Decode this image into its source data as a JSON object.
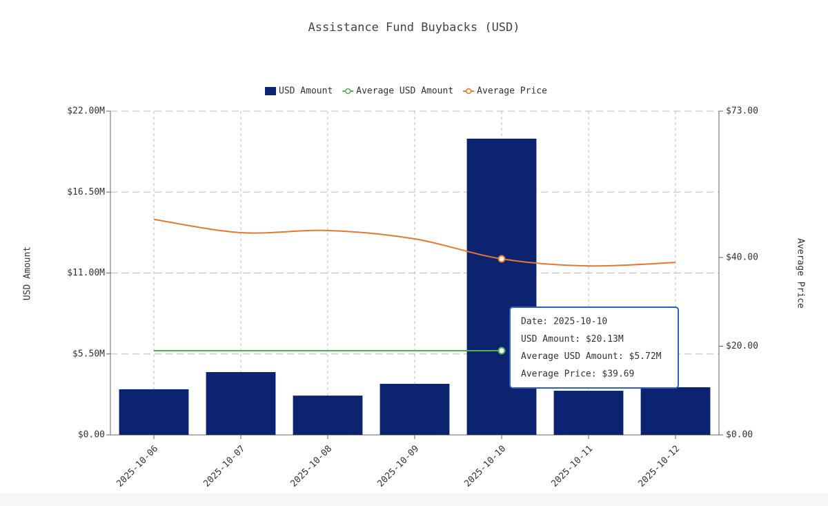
{
  "chart_data": {
    "type": "bar",
    "title": "Assistance Fund Buybacks (USD)",
    "categories": [
      "2025-10-06",
      "2025-10-07",
      "2025-10-08",
      "2025-10-09",
      "2025-10-10",
      "2025-10-11",
      "2025-10-12"
    ],
    "series": [
      {
        "name": "USD Amount",
        "type": "bar",
        "color": "#0c2470",
        "values": [
          3100000,
          4270000,
          2670000,
          3470000,
          20130000,
          3000000,
          3240000
        ]
      },
      {
        "name": "Average USD Amount",
        "type": "line",
        "color": "#4caf50",
        "values": [
          5720000,
          5720000,
          5720000,
          5720000,
          5720000,
          null,
          null
        ]
      },
      {
        "name": "Average Price",
        "type": "line",
        "axis": "y2",
        "color": "#e8772e",
        "values": [
          48.6,
          45.6,
          46.1,
          44.2,
          39.69,
          38.1,
          38.9
        ]
      }
    ],
    "y_label": "USD Amount",
    "y2_label": "Average Price",
    "ylim": [
      0,
      22000000
    ],
    "yticks": [
      {
        "value": 0,
        "label": "$0.00"
      },
      {
        "value": 5500000,
        "label": "$5.50M"
      },
      {
        "value": 11000000,
        "label": "$11.00M"
      },
      {
        "value": 16500000,
        "label": "$16.50M"
      },
      {
        "value": 22000000,
        "label": "$22.00M"
      }
    ],
    "y2lim": [
      0,
      73
    ],
    "y2ticks": [
      {
        "value": 0,
        "label": "$0.00"
      },
      {
        "value": 20,
        "label": "$20.00"
      },
      {
        "value": 40,
        "label": "$40.00"
      },
      {
        "value": 73,
        "label": "$73.00"
      }
    ],
    "grid": true,
    "legend": "top",
    "tooltip": {
      "index": 4,
      "lines": [
        "Date: 2025-10-10",
        "USD Amount: $20.13M",
        "Average USD Amount: $5.72M",
        "Average Price: $39.69"
      ]
    }
  }
}
